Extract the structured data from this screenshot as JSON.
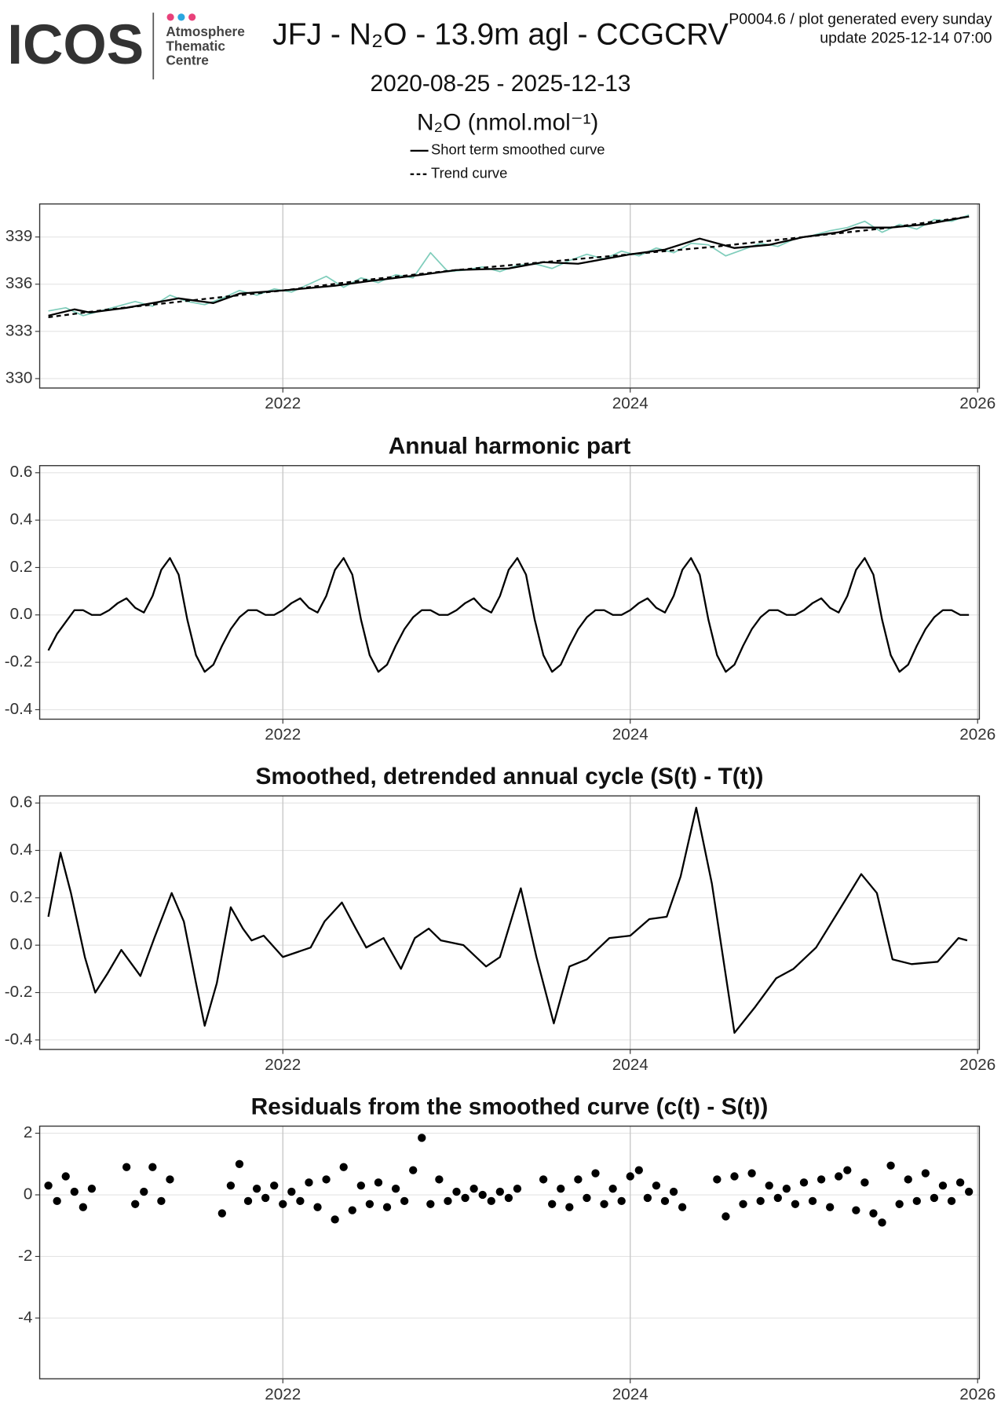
{
  "header": {
    "logo": "ICOS",
    "logo_text": [
      "Atmosphere",
      "Thematic",
      "Centre"
    ],
    "title": "JFJ - N₂O - 13.9m agl - CCGCRV",
    "notes": [
      "P0004.6 / plot generated every sunday",
      "update  2025-12-14 07:00"
    ],
    "subtitle": "2020-08-25 - 2025-12-13"
  },
  "chart_data": [
    {
      "type": "line",
      "y_label": "N₂O (nmol.mol⁻¹)",
      "xlim": [
        2020.6,
        2026.01
      ],
      "xticks": [
        2022,
        2024,
        2026
      ],
      "ylim": [
        329.4,
        341.1
      ],
      "yticks": [
        330,
        333,
        336,
        339
      ],
      "grid": true,
      "legend": "top",
      "series": [
        {
          "color": "#7fcdbb",
          "linestyle": "solid",
          "x": [
            2020.65,
            2020.75,
            2020.85,
            2020.95,
            2021.05,
            2021.15,
            2021.25,
            2021.35,
            2021.45,
            2021.55,
            2021.65,
            2021.75,
            2021.85,
            2021.95,
            2022.05,
            2022.15,
            2022.25,
            2022.35,
            2022.45,
            2022.55,
            2022.65,
            2022.75,
            2022.85,
            2022.95,
            2023.05,
            2023.15,
            2023.25,
            2023.35,
            2023.45,
            2023.55,
            2023.65,
            2023.75,
            2023.85,
            2023.95,
            2024.05,
            2024.15,
            2024.25,
            2024.35,
            2024.45,
            2024.55,
            2024.65,
            2024.75,
            2024.85,
            2024.95,
            2025.05,
            2025.15,
            2025.25,
            2025.35,
            2025.45,
            2025.55,
            2025.65,
            2025.75,
            2025.85,
            2025.95
          ],
          "values": [
            334.3,
            334.5,
            334.0,
            334.3,
            334.6,
            334.9,
            334.6,
            335.3,
            334.9,
            334.7,
            335.1,
            335.6,
            335.3,
            335.7,
            335.5,
            336.0,
            336.5,
            335.8,
            336.4,
            336.1,
            336.6,
            336.4,
            338.0,
            336.8,
            336.9,
            337.1,
            336.8,
            337.2,
            337.3,
            337.0,
            337.5,
            337.9,
            337.6,
            338.1,
            337.8,
            338.3,
            338.0,
            338.6,
            338.5,
            337.8,
            338.2,
            338.6,
            338.4,
            338.9,
            339.1,
            339.4,
            339.6,
            340.0,
            339.3,
            339.8,
            339.5,
            340.1,
            340.0,
            340.4
          ]
        },
        {
          "name": "Short term smoothed curve",
          "color": "#000000",
          "linestyle": "solid",
          "x": [
            2020.65,
            2020.8,
            2020.89,
            2021.1,
            2021.4,
            2021.6,
            2021.75,
            2022,
            2022.3,
            2022.5,
            2022.8,
            2023,
            2023.3,
            2023.5,
            2023.7,
            2024,
            2024.2,
            2024.4,
            2024.6,
            2024.8,
            2025,
            2025.2,
            2025.3,
            2025.5,
            2025.7,
            2025.95
          ],
          "values": [
            334.0,
            334.4,
            334.2,
            334.5,
            335.1,
            334.8,
            335.4,
            335.6,
            335.9,
            336.2,
            336.6,
            336.9,
            337.0,
            337.4,
            337.3,
            337.9,
            338.2,
            338.9,
            338.3,
            338.5,
            339.0,
            339.3,
            339.6,
            339.6,
            339.8,
            340.3
          ]
        },
        {
          "name": "Trend curve",
          "color": "#000000",
          "linestyle": "dashed",
          "x": [
            2020.65,
            2021,
            2021.5,
            2022,
            2022.5,
            2023,
            2023.5,
            2024,
            2024.5,
            2025,
            2025.5,
            2025.95
          ],
          "values": [
            333.9,
            334.4,
            335.0,
            335.6,
            336.3,
            336.9,
            337.4,
            337.9,
            338.4,
            339.0,
            339.6,
            340.3
          ]
        }
      ]
    },
    {
      "type": "line",
      "title": "Annual harmonic part",
      "xlim": [
        2020.6,
        2026.01
      ],
      "xticks": [
        2022,
        2024,
        2026
      ],
      "ylim": [
        -0.44,
        0.63
      ],
      "yticks": [
        -0.4,
        -0.2,
        {
          "value": 0,
          "label": "0.0"
        },
        0.2,
        0.4,
        0.6
      ],
      "grid": true,
      "series": [
        {
          "color": "#000000",
          "linestyle": "solid",
          "x": [
            2020.65,
            2020.7,
            2020.75,
            2020.8,
            2020.85,
            2020.9,
            2020.95,
            2021,
            2021.05,
            2021.1,
            2021.15,
            2021.2,
            2021.25,
            2021.3,
            2021.35,
            2021.4,
            2021.45,
            2021.5,
            2021.55,
            2021.6,
            2021.65,
            2021.7,
            2021.75,
            2021.8,
            2021.85,
            2021.9,
            2021.95,
            2022,
            2022.05,
            2022.1,
            2022.15,
            2022.2,
            2022.25,
            2022.3,
            2022.35,
            2022.4,
            2022.45,
            2022.5,
            2022.55,
            2022.6,
            2022.65,
            2022.7,
            2022.75,
            2022.8,
            2022.85,
            2022.9,
            2022.95,
            2023,
            2023.05,
            2023.1,
            2023.15,
            2023.2,
            2023.25,
            2023.3,
            2023.35,
            2023.4,
            2023.45,
            2023.5,
            2023.55,
            2023.6,
            2023.65,
            2023.7,
            2023.75,
            2023.8,
            2023.85,
            2023.9,
            2023.95,
            2024,
            2024.05,
            2024.1,
            2024.15,
            2024.2,
            2024.25,
            2024.3,
            2024.35,
            2024.4,
            2024.45,
            2024.5,
            2024.55,
            2024.6,
            2024.65,
            2024.7,
            2024.75,
            2024.8,
            2024.85,
            2024.9,
            2024.95,
            2025,
            2025.05,
            2025.1,
            2025.15,
            2025.2,
            2025.25,
            2025.3,
            2025.35,
            2025.4,
            2025.45,
            2025.5,
            2025.55,
            2025.6,
            2025.65,
            2025.7,
            2025.75,
            2025.8,
            2025.85,
            2025.9,
            2025.95
          ],
          "values": [
            -0.15,
            -0.08,
            -0.03,
            0.02,
            0.02,
            0.0,
            0.0,
            0.02,
            0.05,
            0.07,
            0.03,
            0.01,
            0.08,
            0.19,
            0.24,
            0.17,
            -0.02,
            -0.17,
            -0.24,
            -0.21,
            -0.13,
            -0.06,
            -0.01,
            0.02,
            0.02,
            0.0,
            0.0,
            0.02,
            0.05,
            0.07,
            0.03,
            0.01,
            0.08,
            0.19,
            0.24,
            0.17,
            -0.02,
            -0.17,
            -0.24,
            -0.21,
            -0.13,
            -0.06,
            -0.01,
            0.02,
            0.02,
            0.0,
            0.0,
            0.02,
            0.05,
            0.07,
            0.03,
            0.01,
            0.08,
            0.19,
            0.24,
            0.17,
            -0.02,
            -0.17,
            -0.24,
            -0.21,
            -0.13,
            -0.06,
            -0.01,
            0.02,
            0.02,
            0.0,
            0.0,
            0.02,
            0.05,
            0.07,
            0.03,
            0.01,
            0.08,
            0.19,
            0.24,
            0.17,
            -0.02,
            -0.17,
            -0.24,
            -0.21,
            -0.13,
            -0.06,
            -0.01,
            0.02,
            0.02,
            0.0,
            0.0,
            0.02,
            0.05,
            0.07,
            0.03,
            0.01,
            0.08,
            0.19,
            0.24,
            0.17,
            -0.02,
            -0.17,
            -0.24,
            -0.21,
            -0.13,
            -0.06,
            -0.01,
            0.02,
            0.02,
            0.0,
            0.0
          ]
        }
      ]
    },
    {
      "type": "line",
      "title": "Smoothed, detrended annual cycle (S(t) - T(t))",
      "xlim": [
        2020.6,
        2026.01
      ],
      "xticks": [
        2022,
        2024,
        2026
      ],
      "ylim": [
        -0.44,
        0.63
      ],
      "yticks": [
        -0.4,
        -0.2,
        {
          "value": 0,
          "label": "0.0"
        },
        0.2,
        0.4,
        0.6
      ],
      "grid": true,
      "series": [
        {
          "color": "#000000",
          "linestyle": "solid",
          "x": [
            2020.65,
            2020.72,
            2020.78,
            2020.86,
            2020.92,
            2020.99,
            2021.07,
            2021.12,
            2021.18,
            2021.26,
            2021.36,
            2021.43,
            2021.5,
            2021.55,
            2021.62,
            2021.7,
            2021.77,
            2021.82,
            2021.89,
            2022,
            2022.08,
            2022.16,
            2022.24,
            2022.34,
            2022.42,
            2022.48,
            2022.58,
            2022.68,
            2022.76,
            2022.84,
            2022.91,
            2023.04,
            2023.17,
            2023.25,
            2023.37,
            2023.46,
            2023.56,
            2023.65,
            2023.75,
            2023.88,
            2024,
            2024.11,
            2024.21,
            2024.29,
            2024.38,
            2024.47,
            2024.6,
            2024.72,
            2024.84,
            2024.94,
            2025.07,
            2025.23,
            2025.33,
            2025.42,
            2025.51,
            2025.62,
            2025.77,
            2025.89,
            2025.94
          ],
          "values": [
            0.12,
            0.39,
            0.22,
            -0.05,
            -0.2,
            -0.12,
            -0.02,
            -0.07,
            -0.13,
            0.03,
            0.22,
            0.1,
            -0.16,
            -0.34,
            -0.16,
            0.16,
            0.07,
            0.02,
            0.04,
            -0.05,
            -0.03,
            -0.01,
            0.1,
            0.18,
            0.07,
            -0.01,
            0.03,
            -0.1,
            0.03,
            0.07,
            0.02,
            0.0,
            -0.09,
            -0.05,
            0.24,
            -0.05,
            -0.33,
            -0.09,
            -0.06,
            0.03,
            0.04,
            0.11,
            0.12,
            0.29,
            0.58,
            0.26,
            -0.37,
            -0.26,
            -0.14,
            -0.1,
            -0.01,
            0.18,
            0.3,
            0.22,
            -0.06,
            -0.08,
            -0.07,
            0.03,
            0.02
          ]
        }
      ]
    },
    {
      "type": "scatter",
      "title": "Residuals from the smoothed curve (c(t) - S(t))",
      "xlim": [
        2020.6,
        2026.01
      ],
      "xticks": [
        2022,
        2024,
        2026
      ],
      "ylim": [
        -5.97,
        2.23
      ],
      "yticks": [
        -4,
        -2,
        0,
        2
      ],
      "grid": true,
      "color": "#000000",
      "x": [
        2020.65,
        2020.7,
        2020.75,
        2020.8,
        2020.85,
        2020.9,
        2021.1,
        2021.15,
        2021.2,
        2021.25,
        2021.3,
        2021.35,
        2021.65,
        2021.7,
        2021.75,
        2021.8,
        2021.85,
        2021.9,
        2021.95,
        2022,
        2022.05,
        2022.1,
        2022.15,
        2022.2,
        2022.25,
        2022.3,
        2022.35,
        2022.4,
        2022.45,
        2022.5,
        2022.55,
        2022.6,
        2022.65,
        2022.7,
        2022.75,
        2022.8,
        2022.85,
        2022.9,
        2022.95,
        2023,
        2023.05,
        2023.1,
        2023.15,
        2023.2,
        2023.25,
        2023.3,
        2023.35,
        2023.5,
        2023.55,
        2023.6,
        2023.65,
        2023.7,
        2023.75,
        2023.8,
        2023.85,
        2023.9,
        2023.95,
        2024,
        2024.05,
        2024.1,
        2024.15,
        2024.2,
        2024.25,
        2024.3,
        2024.5,
        2024.55,
        2024.6,
        2024.65,
        2024.7,
        2024.75,
        2024.8,
        2024.85,
        2024.9,
        2024.95,
        2025,
        2025.05,
        2025.1,
        2025.15,
        2025.2,
        2025.25,
        2025.3,
        2025.35,
        2025.4,
        2025.45,
        2025.5,
        2025.55,
        2025.6,
        2025.65,
        2025.7,
        2025.75,
        2025.8,
        2025.85,
        2025.9,
        2025.95
      ],
      "values": [
        0.3,
        -0.2,
        0.6,
        0.1,
        -0.4,
        0.2,
        0.9,
        -0.3,
        0.1,
        0.9,
        -0.2,
        0.5,
        -0.6,
        0.3,
        1.0,
        -0.2,
        0.2,
        -0.1,
        0.3,
        -0.3,
        0.1,
        -0.2,
        0.4,
        -0.4,
        0.5,
        -0.8,
        0.9,
        -0.5,
        0.3,
        -0.3,
        0.4,
        -0.4,
        0.2,
        -0.2,
        0.8,
        1.85,
        -0.3,
        0.5,
        -0.2,
        0.1,
        -0.1,
        0.2,
        0.0,
        -0.2,
        0.1,
        -0.1,
        0.2,
        0.5,
        -0.3,
        0.2,
        -0.4,
        0.5,
        -0.1,
        0.7,
        -0.3,
        0.2,
        -0.2,
        0.6,
        0.8,
        -0.1,
        0.3,
        -0.2,
        0.1,
        -0.4,
        0.5,
        -0.7,
        0.6,
        -0.3,
        0.7,
        -0.2,
        0.3,
        -0.1,
        0.2,
        -0.3,
        0.4,
        -0.2,
        0.5,
        -0.4,
        0.6,
        0.8,
        -0.5,
        0.4,
        -0.6,
        -0.9,
        0.95,
        -0.3,
        0.5,
        -0.2,
        0.7,
        -0.1,
        0.3,
        -0.2,
        0.4,
        0.1
      ]
    }
  ]
}
